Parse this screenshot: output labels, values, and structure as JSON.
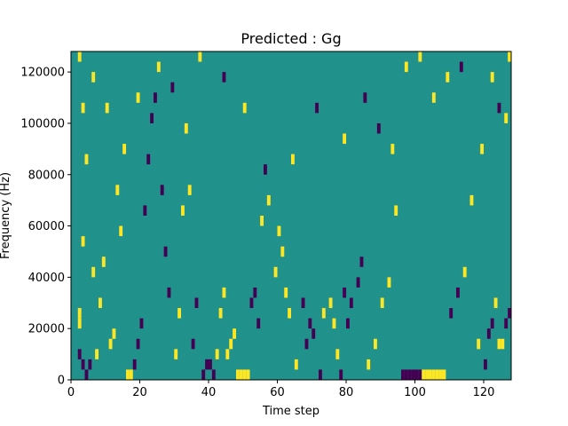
{
  "chart_data": {
    "type": "heatmap",
    "title": "Predicted : Gg",
    "xlabel": "Time step",
    "ylabel": "Frequency (Hz)",
    "xlim": [
      0,
      128
    ],
    "ylim": [
      0,
      128000
    ],
    "xticks": [
      0,
      20,
      40,
      60,
      80,
      100,
      120
    ],
    "yticks": [
      0,
      20000,
      40000,
      60000,
      80000,
      100000,
      120000
    ],
    "grid": false,
    "legend": "none",
    "n_time_steps": 128,
    "n_freq_bins": 32,
    "bin_width_hz": 4000,
    "value_levels": [
      -1,
      0,
      1
    ],
    "colors": {
      "-1": "#440154",
      "0": "#21918c",
      "1": "#fde725"
    },
    "cells": [
      {
        "t": 2,
        "f": 8000,
        "v": -1
      },
      {
        "t": 3,
        "f": 4000,
        "v": -1
      },
      {
        "t": 4,
        "f": 0,
        "v": -1
      },
      {
        "t": 5,
        "f": 4000,
        "v": -1
      },
      {
        "t": 2,
        "f": 20000,
        "v": 1
      },
      {
        "t": 2,
        "f": 24000,
        "v": 1
      },
      {
        "t": 3,
        "f": 52000,
        "v": 1
      },
      {
        "t": 2,
        "f": 124000,
        "v": 1
      },
      {
        "t": 3,
        "f": 104000,
        "v": 1
      },
      {
        "t": 4,
        "f": 84000,
        "v": 1
      },
      {
        "t": 6,
        "f": 40000,
        "v": 1
      },
      {
        "t": 7,
        "f": 8000,
        "v": 1
      },
      {
        "t": 8,
        "f": 28000,
        "v": 1
      },
      {
        "t": 9,
        "f": 44000,
        "v": 1
      },
      {
        "t": 11,
        "f": 12000,
        "v": 1
      },
      {
        "t": 12,
        "f": 16000,
        "v": 1
      },
      {
        "t": 13,
        "f": 72000,
        "v": 1
      },
      {
        "t": 14,
        "f": 56000,
        "v": 1
      },
      {
        "t": 16,
        "f": 0,
        "v": 1
      },
      {
        "t": 17,
        "f": 0,
        "v": 1
      },
      {
        "t": 18,
        "f": 4000,
        "v": -1
      },
      {
        "t": 19,
        "f": 12000,
        "v": -1
      },
      {
        "t": 20,
        "f": 20000,
        "v": -1
      },
      {
        "t": 21,
        "f": 64000,
        "v": -1
      },
      {
        "t": 22,
        "f": 84000,
        "v": -1
      },
      {
        "t": 24,
        "f": 108000,
        "v": -1
      },
      {
        "t": 26,
        "f": 72000,
        "v": -1
      },
      {
        "t": 27,
        "f": 48000,
        "v": -1
      },
      {
        "t": 28,
        "f": 32000,
        "v": -1
      },
      {
        "t": 30,
        "f": 8000,
        "v": 1
      },
      {
        "t": 31,
        "f": 24000,
        "v": 1
      },
      {
        "t": 32,
        "f": 64000,
        "v": 1
      },
      {
        "t": 34,
        "f": 72000,
        "v": 1
      },
      {
        "t": 35,
        "f": 12000,
        "v": -1
      },
      {
        "t": 36,
        "f": 28000,
        "v": -1
      },
      {
        "t": 38,
        "f": 0,
        "v": -1
      },
      {
        "t": 39,
        "f": 4000,
        "v": -1
      },
      {
        "t": 40,
        "f": 4000,
        "v": -1
      },
      {
        "t": 41,
        "f": 0,
        "v": -1
      },
      {
        "t": 42,
        "f": 8000,
        "v": 1
      },
      {
        "t": 43,
        "f": 24000,
        "v": 1
      },
      {
        "t": 44,
        "f": 32000,
        "v": 1
      },
      {
        "t": 45,
        "f": 8000,
        "v": 1
      },
      {
        "t": 46,
        "f": 12000,
        "v": 1
      },
      {
        "t": 47,
        "f": 16000,
        "v": 1
      },
      {
        "t": 48,
        "f": 0,
        "v": 1
      },
      {
        "t": 49,
        "f": 0,
        "v": 1
      },
      {
        "t": 50,
        "f": 0,
        "v": 1
      },
      {
        "t": 51,
        "f": 0,
        "v": 1
      },
      {
        "t": 52,
        "f": 28000,
        "v": -1
      },
      {
        "t": 53,
        "f": 32000,
        "v": -1
      },
      {
        "t": 54,
        "f": 20000,
        "v": -1
      },
      {
        "t": 55,
        "f": 60000,
        "v": 1
      },
      {
        "t": 57,
        "f": 68000,
        "v": 1
      },
      {
        "t": 59,
        "f": 40000,
        "v": 1
      },
      {
        "t": 60,
        "f": 56000,
        "v": 1
      },
      {
        "t": 61,
        "f": 48000,
        "v": 1
      },
      {
        "t": 62,
        "f": 32000,
        "v": 1
      },
      {
        "t": 63,
        "f": 24000,
        "v": 1
      },
      {
        "t": 65,
        "f": 4000,
        "v": 1
      },
      {
        "t": 67,
        "f": 28000,
        "v": -1
      },
      {
        "t": 68,
        "f": 12000,
        "v": -1
      },
      {
        "t": 69,
        "f": 20000,
        "v": -1
      },
      {
        "t": 70,
        "f": 16000,
        "v": -1
      },
      {
        "t": 72,
        "f": 0,
        "v": -1
      },
      {
        "t": 73,
        "f": 24000,
        "v": 1
      },
      {
        "t": 75,
        "f": 28000,
        "v": 1
      },
      {
        "t": 76,
        "f": 20000,
        "v": 1
      },
      {
        "t": 77,
        "f": 8000,
        "v": 1
      },
      {
        "t": 78,
        "f": 0,
        "v": -1
      },
      {
        "t": 79,
        "f": 32000,
        "v": -1
      },
      {
        "t": 80,
        "f": 20000,
        "v": -1
      },
      {
        "t": 81,
        "f": 28000,
        "v": -1
      },
      {
        "t": 83,
        "f": 36000,
        "v": -1
      },
      {
        "t": 84,
        "f": 44000,
        "v": -1
      },
      {
        "t": 86,
        "f": 4000,
        "v": 1
      },
      {
        "t": 88,
        "f": 12000,
        "v": 1
      },
      {
        "t": 90,
        "f": 28000,
        "v": 1
      },
      {
        "t": 92,
        "f": 36000,
        "v": 1
      },
      {
        "t": 94,
        "f": 64000,
        "v": 1
      },
      {
        "t": 96,
        "f": 0,
        "v": -1
      },
      {
        "t": 97,
        "f": 0,
        "v": -1
      },
      {
        "t": 98,
        "f": 0,
        "v": -1
      },
      {
        "t": 99,
        "f": 0,
        "v": -1
      },
      {
        "t": 100,
        "f": 0,
        "v": -1
      },
      {
        "t": 101,
        "f": 0,
        "v": -1
      },
      {
        "t": 102,
        "f": 0,
        "v": 1
      },
      {
        "t": 103,
        "f": 0,
        "v": 1
      },
      {
        "t": 104,
        "f": 0,
        "v": 1
      },
      {
        "t": 105,
        "f": 0,
        "v": 1
      },
      {
        "t": 106,
        "f": 0,
        "v": 1
      },
      {
        "t": 107,
        "f": 0,
        "v": 1
      },
      {
        "t": 108,
        "f": 0,
        "v": 1
      },
      {
        "t": 110,
        "f": 24000,
        "v": -1
      },
      {
        "t": 112,
        "f": 32000,
        "v": -1
      },
      {
        "t": 114,
        "f": 40000,
        "v": 1
      },
      {
        "t": 116,
        "f": 68000,
        "v": 1
      },
      {
        "t": 118,
        "f": 12000,
        "v": 1
      },
      {
        "t": 120,
        "f": 4000,
        "v": -1
      },
      {
        "t": 121,
        "f": 16000,
        "v": -1
      },
      {
        "t": 122,
        "f": 20000,
        "v": -1
      },
      {
        "t": 123,
        "f": 28000,
        "v": 1
      },
      {
        "t": 124,
        "f": 12000,
        "v": 1
      },
      {
        "t": 125,
        "f": 12000,
        "v": 1
      },
      {
        "t": 126,
        "f": 20000,
        "v": -1
      },
      {
        "t": 127,
        "f": 24000,
        "v": -1
      },
      {
        "t": 127,
        "f": 124000,
        "v": 1
      },
      {
        "t": 126,
        "f": 100000,
        "v": 1
      },
      {
        "t": 124,
        "f": 104000,
        "v": -1
      },
      {
        "t": 122,
        "f": 116000,
        "v": 1
      },
      {
        "t": 119,
        "f": 88000,
        "v": 1
      },
      {
        "t": 113,
        "f": 120000,
        "v": -1
      },
      {
        "t": 109,
        "f": 116000,
        "v": 1
      },
      {
        "t": 105,
        "f": 108000,
        "v": 1
      },
      {
        "t": 101,
        "f": 124000,
        "v": 1
      },
      {
        "t": 97,
        "f": 120000,
        "v": 1
      },
      {
        "t": 93,
        "f": 88000,
        "v": 1
      },
      {
        "t": 89,
        "f": 96000,
        "v": -1
      },
      {
        "t": 85,
        "f": 108000,
        "v": -1
      },
      {
        "t": 79,
        "f": 92000,
        "v": 1
      },
      {
        "t": 71,
        "f": 104000,
        "v": -1
      },
      {
        "t": 64,
        "f": 84000,
        "v": 1
      },
      {
        "t": 56,
        "f": 80000,
        "v": -1
      },
      {
        "t": 50,
        "f": 104000,
        "v": 1
      },
      {
        "t": 44,
        "f": 116000,
        "v": -1
      },
      {
        "t": 37,
        "f": 124000,
        "v": 1
      },
      {
        "t": 33,
        "f": 96000,
        "v": 1
      },
      {
        "t": 29,
        "f": 112000,
        "v": -1
      },
      {
        "t": 25,
        "f": 120000,
        "v": 1
      },
      {
        "t": 23,
        "f": 100000,
        "v": -1
      },
      {
        "t": 19,
        "f": 108000,
        "v": 1
      },
      {
        "t": 15,
        "f": 88000,
        "v": 1
      },
      {
        "t": 10,
        "f": 104000,
        "v": 1
      },
      {
        "t": 6,
        "f": 116000,
        "v": 1
      }
    ]
  }
}
